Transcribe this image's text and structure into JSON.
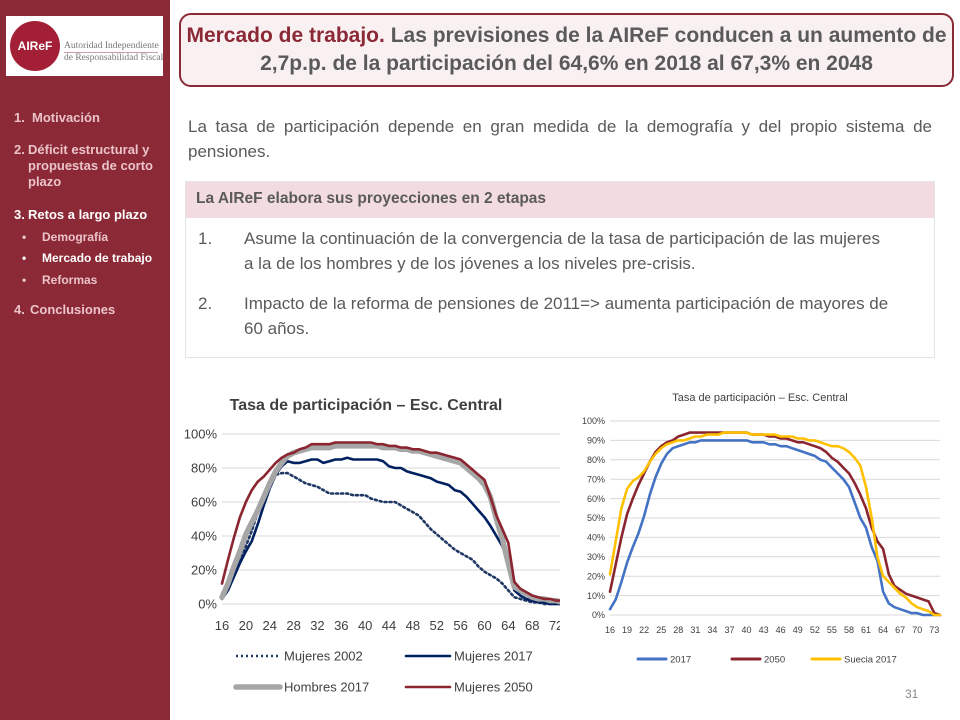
{
  "sidebar": {
    "logo_text": "AIReF",
    "logo_line1": "Autoridad Independiente",
    "logo_line2": "de Responsabilidad Fiscal",
    "nav": [
      {
        "num": "1.",
        "label": "Motivación"
      },
      {
        "num": "2.",
        "label": "Déficit estructural y propuestas de corto plazo"
      },
      {
        "num": "3.",
        "label": "Retos a largo plazo"
      },
      {
        "num": "4.",
        "label": "Conclusiones"
      }
    ],
    "sub": [
      {
        "bullet": "•",
        "label": "Demografía"
      },
      {
        "bullet": "•",
        "label": "Mercado de trabajo"
      },
      {
        "bullet": "•",
        "label": "Reformas"
      }
    ]
  },
  "title": {
    "strong": "Mercado de trabajo.",
    "rest": "Las previsiones de la AIReF conducen a un aumento de 2,7p.p. de la participación del 64,6% en 2018 al 67,3% en 2048"
  },
  "intro": "La tasa de participación depende en gran medida de la demografía y del propio sistema de pensiones.",
  "stages": {
    "heading": "La AIReF elabora sus proyecciones en 2 etapas",
    "items": [
      {
        "num": "1.",
        "text": "Asume la continuación de la convergencia de la tasa de participación de las mujeres a la de los hombres y de los jóvenes a los niveles pre-crisis."
      },
      {
        "num": "2.",
        "text": "Impacto de la reforma de pensiones de 2011=> aumenta participación de mayores de 60 años."
      }
    ]
  },
  "page_number": "31",
  "chart_data": [
    {
      "type": "line",
      "title": "Tasa de participación  – Esc. Central",
      "xlabel": "",
      "ylabel": "",
      "x": [
        16,
        17,
        18,
        19,
        20,
        21,
        22,
        23,
        24,
        25,
        26,
        27,
        28,
        29,
        30,
        31,
        32,
        33,
        34,
        35,
        36,
        37,
        38,
        39,
        40,
        41,
        42,
        43,
        44,
        45,
        46,
        47,
        48,
        49,
        50,
        51,
        52,
        53,
        54,
        55,
        56,
        57,
        58,
        59,
        60,
        61,
        62,
        63,
        64,
        65,
        66,
        67,
        68,
        69,
        70,
        71,
        72,
        73,
        74
      ],
      "x_ticks": [
        16,
        20,
        24,
        28,
        32,
        36,
        40,
        44,
        48,
        52,
        56,
        60,
        64,
        68,
        72
      ],
      "xlim": [
        16,
        74
      ],
      "ylim": [
        0,
        100
      ],
      "y_ticks": [
        "0%",
        "20%",
        "40%",
        "60%",
        "80%",
        "100%"
      ],
      "grid": true,
      "legend": "bottom",
      "series": [
        {
          "name": "Mujeres 2002",
          "color": "#1f3864",
          "dash": true,
          "values": [
            4,
            10,
            18,
            26,
            34,
            43,
            54,
            64,
            72,
            76,
            77,
            77,
            75,
            73,
            71,
            70,
            69,
            67,
            65,
            65,
            65,
            65,
            64,
            64,
            64,
            62,
            61,
            60,
            60,
            60,
            58,
            56,
            54,
            52,
            48,
            44,
            41,
            38,
            35,
            32,
            30,
            28,
            26,
            22,
            19,
            17,
            15,
            12,
            8,
            4,
            3,
            2,
            1,
            1,
            0,
            0,
            0,
            0,
            0
          ]
        },
        {
          "name": "Mujeres 2017",
          "color": "#002060",
          "dash": false,
          "values": [
            3,
            8,
            16,
            24,
            31,
            37,
            47,
            58,
            68,
            76,
            81,
            84,
            83,
            83,
            84,
            85,
            85,
            83,
            84,
            85,
            85,
            86,
            85,
            85,
            85,
            85,
            85,
            84,
            81,
            80,
            80,
            78,
            77,
            76,
            75,
            74,
            72,
            71,
            70,
            67,
            66,
            63,
            59,
            55,
            51,
            46,
            40,
            34,
            24,
            8,
            5,
            3,
            2,
            1,
            1,
            0,
            0,
            0,
            0
          ]
        },
        {
          "name": "Hombres 2017",
          "color": "#a6a6a6",
          "dash": false,
          "thick": true,
          "values": [
            4,
            12,
            22,
            31,
            41,
            48,
            55,
            63,
            71,
            78,
            83,
            87,
            89,
            90,
            91,
            92,
            92,
            92,
            92,
            93,
            93,
            93,
            93,
            93,
            93,
            93,
            93,
            92,
            92,
            92,
            91,
            91,
            90,
            90,
            89,
            88,
            87,
            86,
            85,
            84,
            83,
            80,
            77,
            74,
            70,
            63,
            50,
            38,
            24,
            10,
            8,
            6,
            4,
            3,
            3,
            2,
            2,
            1,
            1
          ]
        },
        {
          "name": "Mujeres 2050",
          "color": "#8b2530",
          "dash": false,
          "values": [
            12,
            26,
            39,
            51,
            60,
            67,
            72,
            75,
            79,
            83,
            86,
            88,
            89,
            91,
            92,
            94,
            94,
            94,
            94,
            95,
            95,
            95,
            95,
            95,
            95,
            95,
            94,
            94,
            93,
            93,
            92,
            92,
            91,
            91,
            90,
            89,
            89,
            88,
            87,
            86,
            85,
            82,
            79,
            76,
            73,
            63,
            52,
            44,
            36,
            13,
            9,
            7,
            5,
            4,
            3,
            3,
            2,
            2,
            1
          ]
        }
      ]
    },
    {
      "type": "line",
      "title": "Tasa de participación  – Esc. Central",
      "xlabel": "",
      "ylabel": "",
      "x": [
        16,
        17,
        18,
        19,
        20,
        21,
        22,
        23,
        24,
        25,
        26,
        27,
        28,
        29,
        30,
        31,
        32,
        33,
        34,
        35,
        36,
        37,
        38,
        39,
        40,
        41,
        42,
        43,
        44,
        45,
        46,
        47,
        48,
        49,
        50,
        51,
        52,
        53,
        54,
        55,
        56,
        57,
        58,
        59,
        60,
        61,
        62,
        63,
        64,
        65,
        66,
        67,
        68,
        69,
        70,
        71,
        72,
        73,
        74
      ],
      "x_ticks": [
        16,
        19,
        22,
        25,
        28,
        31,
        34,
        37,
        40,
        43,
        46,
        49,
        52,
        55,
        58,
        61,
        64,
        67,
        70,
        73
      ],
      "xlim": [
        16,
        74
      ],
      "ylim": [
        0,
        100
      ],
      "y_ticks": [
        "0%",
        "10%",
        "20%",
        "30%",
        "40%",
        "50%",
        "60%",
        "70%",
        "80%",
        "90%",
        "100%"
      ],
      "grid": true,
      "legend": "bottom",
      "series": [
        {
          "name": "2017",
          "color": "#4472c4",
          "values": [
            3,
            8,
            17,
            27,
            35,
            42,
            51,
            62,
            71,
            78,
            83,
            86,
            87,
            88,
            89,
            89,
            90,
            90,
            90,
            90,
            90,
            90,
            90,
            90,
            90,
            89,
            89,
            89,
            88,
            88,
            87,
            87,
            86,
            85,
            84,
            83,
            82,
            80,
            79,
            76,
            73,
            70,
            66,
            58,
            50,
            45,
            35,
            28,
            12,
            6,
            4,
            3,
            2,
            1,
            1,
            0,
            0,
            0,
            0
          ]
        },
        {
          "name": "2050",
          "color": "#8b2530",
          "values": [
            12,
            26,
            40,
            52,
            60,
            67,
            73,
            79,
            84,
            87,
            89,
            90,
            92,
            93,
            94,
            94,
            94,
            94,
            94,
            94,
            94,
            94,
            94,
            94,
            94,
            93,
            93,
            93,
            92,
            92,
            91,
            91,
            90,
            89,
            89,
            88,
            87,
            86,
            84,
            81,
            79,
            76,
            73,
            68,
            62,
            55,
            45,
            38,
            34,
            21,
            15,
            13,
            11,
            10,
            9,
            8,
            7,
            1,
            0
          ]
        },
        {
          "name": "Suecia 2017",
          "color": "#ffc000",
          "values": [
            21,
            38,
            55,
            65,
            69,
            71,
            74,
            79,
            83,
            86,
            88,
            89,
            90,
            90,
            91,
            92,
            92,
            93,
            93,
            93,
            94,
            94,
            94,
            94,
            94,
            93,
            93,
            93,
            93,
            93,
            92,
            92,
            92,
            91,
            91,
            90,
            90,
            89,
            88,
            87,
            87,
            86,
            84,
            81,
            77,
            66,
            50,
            30,
            20,
            17,
            14,
            11,
            9,
            6,
            4,
            3,
            2,
            0,
            0
          ]
        }
      ]
    }
  ]
}
